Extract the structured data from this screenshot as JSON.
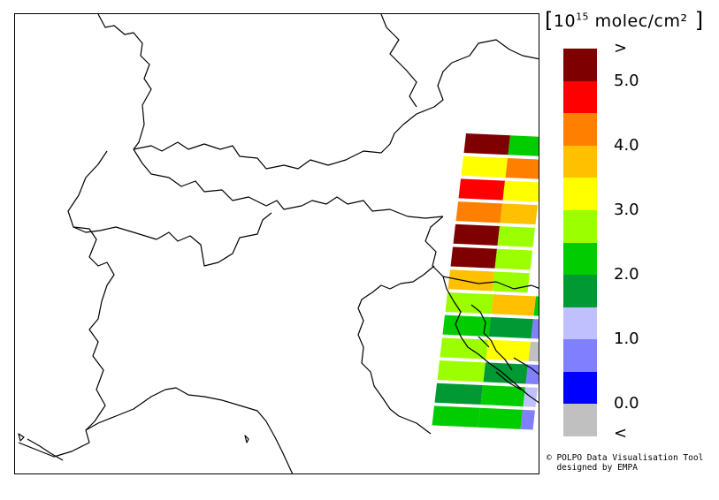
{
  "legend": {
    "unit_prefix": "10",
    "unit_exponent": "15",
    "unit_suffix": " molec/cm²",
    "bands": [
      {
        "color": "#7f0000",
        "tick": ">"
      },
      {
        "color": "#ff0000",
        "tick": "5.0"
      },
      {
        "color": "#ff8000",
        "tick": ""
      },
      {
        "color": "#ffc000",
        "tick": "4.0"
      },
      {
        "color": "#ffff00",
        "tick": ""
      },
      {
        "color": "#9bff00",
        "tick": "3.0"
      },
      {
        "color": "#00cc00",
        "tick": ""
      },
      {
        "color": "#009933",
        "tick": "2.0"
      },
      {
        "color": "#c0c0ff",
        "tick": ""
      },
      {
        "color": "#8080ff",
        "tick": "1.0"
      },
      {
        "color": "#0000ff",
        "tick": ""
      },
      {
        "color": "#c0c0c0",
        "tick": "0.0"
      }
    ],
    "low_label": "<"
  },
  "credit": {
    "line1": "© POLPO Data Visualisation Tool",
    "line2": "  designed by EMPA"
  },
  "swath_cells": [
    [
      "#7f0000",
      "#00cc00"
    ],
    [
      "#ffff00",
      "#ff8000"
    ],
    [
      "#ff0000",
      "#ffff00"
    ],
    [
      "#ff8000",
      "#ffc000"
    ],
    [
      "#7f0000",
      "#9bff00"
    ],
    [
      "#7f0000",
      "#9bff00"
    ],
    [
      "#ffc000",
      "#9bff00"
    ],
    [
      "#9bff00",
      "#ffc000",
      "#00cc00"
    ],
    [
      "#00cc00",
      "#009933",
      "#8080ff"
    ],
    [
      "#9bff00",
      "#ffff00",
      "#c0c0c0"
    ],
    [
      "#9bff00",
      "#009933",
      "#8080ff"
    ],
    [
      "#009933",
      "#00cc00",
      "#c0c0ff"
    ],
    [
      "#00cc00",
      "#00cc00",
      "#8080ff"
    ]
  ]
}
